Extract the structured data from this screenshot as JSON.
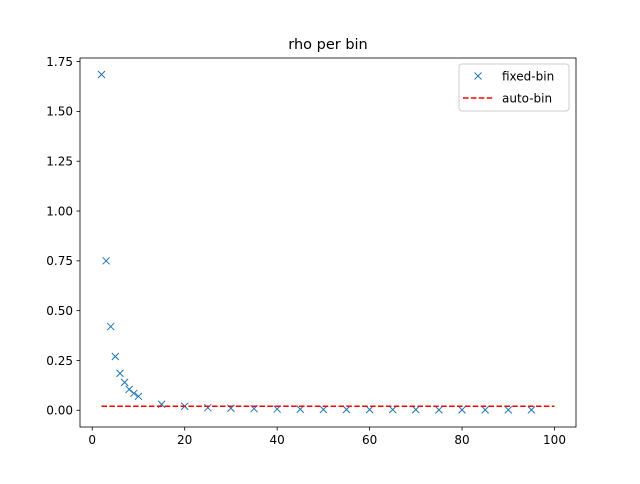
{
  "chart_data": {
    "type": "scatter",
    "title": "rho per bin",
    "xlabel": "",
    "ylabel": "",
    "xlim": [
      -2.65,
      104.65
    ],
    "ylim": [
      -0.084,
      1.768
    ],
    "xticks": [
      0,
      20,
      40,
      60,
      80,
      100
    ],
    "yticks": [
      0.0,
      0.25,
      0.5,
      0.75,
      1.0,
      1.25,
      1.5,
      1.75
    ],
    "xtick_labels": [
      "0",
      "20",
      "40",
      "60",
      "80",
      "100"
    ],
    "ytick_labels": [
      "0.00",
      "0.25",
      "0.50",
      "0.75",
      "1.00",
      "1.25",
      "1.50",
      "1.75"
    ],
    "grid": false,
    "legend": "top-right",
    "series": [
      {
        "name": "fixed-bin",
        "kind": "scatter",
        "marker": "x",
        "color": "#1f77b4",
        "x": [
          2,
          3,
          4,
          5,
          6,
          7,
          8,
          9,
          10,
          15,
          20,
          25,
          30,
          35,
          40,
          45,
          50,
          55,
          60,
          65,
          70,
          75,
          80,
          85,
          90,
          95
        ],
        "y": [
          1.685,
          0.75,
          0.42,
          0.27,
          0.185,
          0.14,
          0.105,
          0.085,
          0.07,
          0.03,
          0.02,
          0.013,
          0.01,
          0.008,
          0.006,
          0.005,
          0.004,
          0.004,
          0.003,
          0.003,
          0.003,
          0.002,
          0.002,
          0.002,
          0.002,
          0.002
        ]
      },
      {
        "name": "auto-bin",
        "kind": "line",
        "linestyle": "dashed",
        "color": "#ff0000",
        "x": [
          2,
          100
        ],
        "y": [
          0.02,
          0.02
        ]
      }
    ]
  }
}
